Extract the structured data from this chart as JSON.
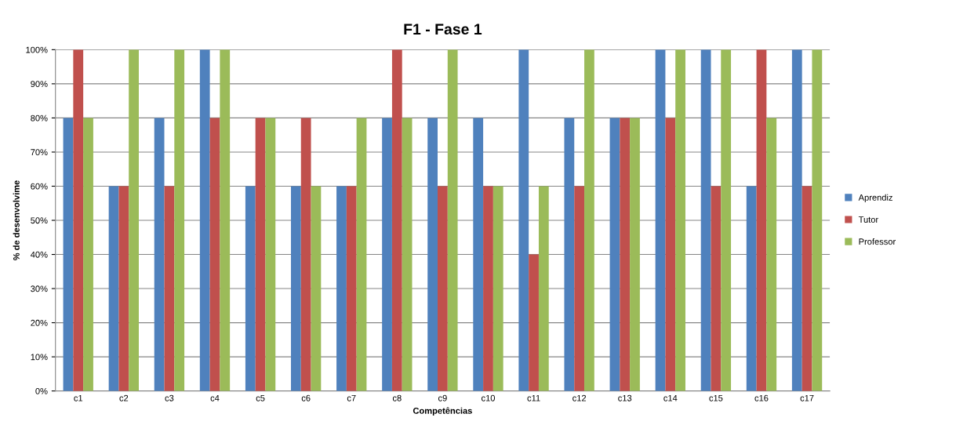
{
  "chart_data": {
    "type": "bar",
    "title": "F1 - Fase 1",
    "xlabel": "Competências",
    "ylabel": "% de desenvolvime",
    "categories": [
      "c1",
      "c2",
      "c3",
      "c4",
      "c5",
      "c6",
      "c7",
      "c8",
      "c9",
      "c10",
      "c11",
      "c12",
      "c13",
      "c14",
      "c15",
      "c16",
      "c17"
    ],
    "series": [
      {
        "name": "Aprendiz",
        "color": "#4f81bd",
        "values": [
          80,
          60,
          80,
          100,
          60,
          60,
          60,
          80,
          80,
          80,
          100,
          80,
          80,
          100,
          100,
          60,
          100
        ]
      },
      {
        "name": "Tutor",
        "color": "#c0504d",
        "values": [
          100,
          60,
          60,
          80,
          80,
          80,
          60,
          100,
          60,
          60,
          40,
          60,
          80,
          80,
          60,
          100,
          60
        ]
      },
      {
        "name": "Professor",
        "color": "#9bbb59",
        "values": [
          80,
          100,
          100,
          100,
          80,
          60,
          80,
          80,
          100,
          60,
          60,
          100,
          80,
          100,
          100,
          80,
          100
        ]
      }
    ],
    "ylim": [
      0,
      100
    ],
    "yticks": [
      {
        "value": 0,
        "label": "0%"
      },
      {
        "value": 10,
        "label": "10%"
      },
      {
        "value": 20,
        "label": "20%"
      },
      {
        "value": 30,
        "label": "30%"
      },
      {
        "value": 40,
        "label": "40%"
      },
      {
        "value": 50,
        "label": "50%"
      },
      {
        "value": 60,
        "label": "60%"
      },
      {
        "value": 70,
        "label": "70%"
      },
      {
        "value": 80,
        "label": "80%"
      },
      {
        "value": 90,
        "label": "90%"
      },
      {
        "value": 100,
        "label": "100%"
      }
    ],
    "grid": "y",
    "legend": "right"
  }
}
